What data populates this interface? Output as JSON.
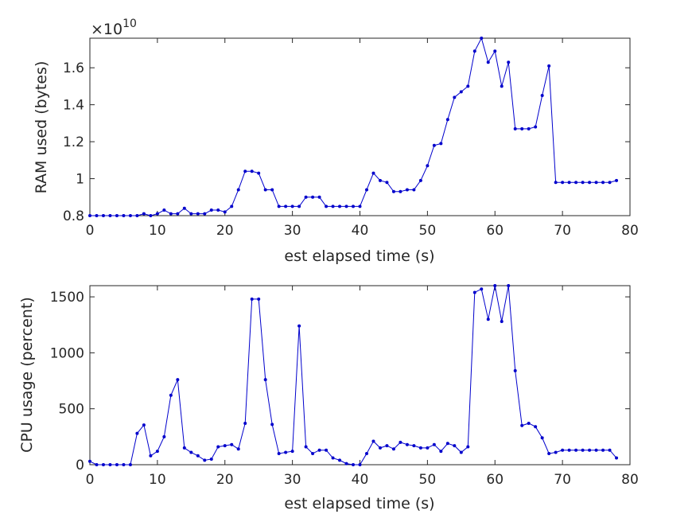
{
  "chart_data": [
    {
      "type": "line",
      "xlabel": "est elapsed time (s)",
      "ylabel": "RAM used (bytes)",
      "exponent_prefix": "×10",
      "exponent_power": "10",
      "xlim": [
        0,
        80
      ],
      "ylim": [
        0.8,
        1.76
      ],
      "xticks": [
        0,
        10,
        20,
        30,
        40,
        50,
        60,
        70,
        80
      ],
      "yticks": [
        0.8,
        1,
        1.2,
        1.4,
        1.6
      ],
      "ytick_labels": [
        "0.8",
        "1",
        "1.2",
        "1.4",
        "1.6"
      ],
      "color": "#0000cc",
      "x": [
        0,
        1,
        2,
        3,
        4,
        5,
        6,
        7,
        8,
        9,
        10,
        11,
        12,
        13,
        14,
        15,
        16,
        17,
        18,
        19,
        20,
        21,
        22,
        23,
        24,
        25,
        26,
        27,
        28,
        29,
        30,
        31,
        32,
        33,
        34,
        35,
        36,
        37,
        38,
        39,
        40,
        41,
        42,
        43,
        44,
        45,
        46,
        47,
        48,
        49,
        50,
        51,
        52,
        53,
        54,
        55,
        56,
        57,
        58,
        59,
        60,
        61,
        62,
        63,
        64,
        65,
        66,
        67,
        68,
        69,
        70,
        71,
        72,
        73,
        74,
        75,
        76,
        77,
        78
      ],
      "series": [
        {
          "values": [
            0.8,
            0.8,
            0.8,
            0.8,
            0.8,
            0.8,
            0.8,
            0.8,
            0.81,
            0.8,
            0.81,
            0.83,
            0.81,
            0.81,
            0.84,
            0.81,
            0.81,
            0.81,
            0.83,
            0.83,
            0.82,
            0.85,
            0.94,
            1.04,
            1.04,
            1.03,
            0.94,
            0.94,
            0.85,
            0.85,
            0.85,
            0.85,
            0.9,
            0.9,
            0.9,
            0.85,
            0.85,
            0.85,
            0.85,
            0.85,
            0.85,
            0.94,
            1.03,
            0.99,
            0.98,
            0.93,
            0.93,
            0.94,
            0.94,
            0.99,
            1.07,
            1.18,
            1.19,
            1.32,
            1.44,
            1.47,
            1.5,
            1.69,
            1.76,
            1.63,
            1.69,
            1.5,
            1.63,
            1.27,
            1.27,
            1.27,
            1.28,
            1.45,
            1.61,
            0.98,
            0.98,
            0.98,
            0.98,
            0.98,
            0.98,
            0.98,
            0.98,
            0.98,
            0.99
          ]
        }
      ]
    },
    {
      "type": "line",
      "xlabel": "est elapsed time (s)",
      "ylabel": "CPU usage (percent)",
      "xlim": [
        0,
        80
      ],
      "ylim": [
        0,
        1600
      ],
      "xticks": [
        0,
        10,
        20,
        30,
        40,
        50,
        60,
        70,
        80
      ],
      "yticks": [
        0,
        500,
        1000,
        1500
      ],
      "ytick_labels": [
        "0",
        "500",
        "1000",
        "1500"
      ],
      "color": "#0000cc",
      "x": [
        0,
        1,
        2,
        3,
        4,
        5,
        6,
        7,
        8,
        9,
        10,
        11,
        12,
        13,
        14,
        15,
        16,
        17,
        18,
        19,
        20,
        21,
        22,
        23,
        24,
        25,
        26,
        27,
        28,
        29,
        30,
        31,
        32,
        33,
        34,
        35,
        36,
        37,
        38,
        39,
        40,
        41,
        42,
        43,
        44,
        45,
        46,
        47,
        48,
        49,
        50,
        51,
        52,
        53,
        54,
        55,
        56,
        57,
        58,
        59,
        60,
        61,
        62,
        63,
        64,
        65,
        66,
        67,
        68,
        69,
        70,
        71,
        72,
        73,
        74,
        75,
        76,
        77,
        78
      ],
      "series": [
        {
          "values": [
            30,
            0,
            0,
            0,
            0,
            0,
            0,
            280,
            355,
            80,
            120,
            250,
            620,
            760,
            150,
            110,
            80,
            40,
            50,
            160,
            170,
            180,
            140,
            370,
            1480,
            1480,
            760,
            360,
            100,
            110,
            120,
            1240,
            160,
            100,
            130,
            130,
            60,
            40,
            10,
            0,
            0,
            100,
            210,
            150,
            170,
            140,
            200,
            180,
            170,
            150,
            150,
            180,
            120,
            190,
            170,
            110,
            160,
            1540,
            1570,
            1300,
            1600,
            1280,
            1600,
            840,
            350,
            370,
            340,
            240,
            100,
            110,
            130,
            130,
            130,
            130,
            130,
            130,
            130,
            130,
            60
          ]
        }
      ]
    }
  ]
}
